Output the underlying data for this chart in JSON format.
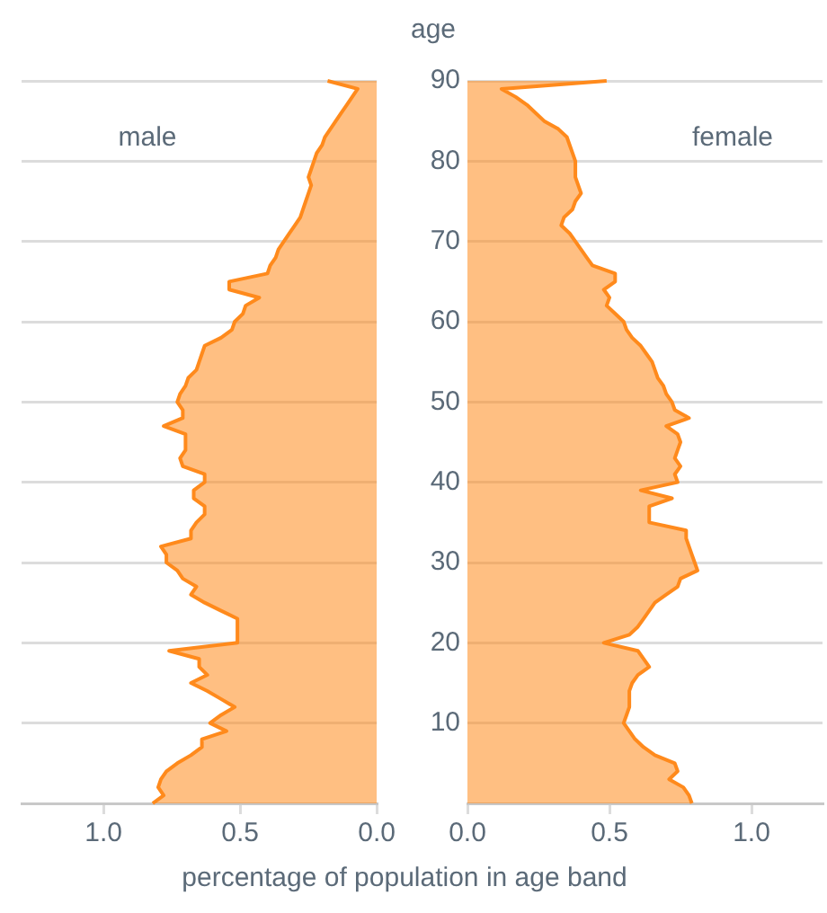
{
  "chart_data": [
    {
      "type": "area",
      "orientation": "horizontal",
      "xlabel": "percentage of population in age band",
      "x": [
        0,
        1,
        2,
        3,
        4,
        5,
        6,
        7,
        8,
        9,
        10,
        11,
        12,
        13,
        14,
        15,
        16,
        17,
        18,
        19,
        20,
        21,
        22,
        23,
        24,
        25,
        26,
        27,
        28,
        29,
        30,
        31,
        32,
        33,
        34,
        35,
        36,
        37,
        38,
        39,
        40,
        41,
        42,
        43,
        44,
        45,
        46,
        47,
        48,
        49,
        50,
        51,
        52,
        53,
        54,
        55,
        56,
        57,
        58,
        59,
        60,
        61,
        62,
        63,
        64,
        65,
        66,
        67,
        68,
        69,
        70,
        71,
        72,
        73,
        74,
        75,
        76,
        77,
        78,
        79,
        80,
        81,
        82,
        83,
        84,
        85,
        86,
        87,
        88,
        89,
        90
      ],
      "series": [
        {
          "name": "male",
          "color": "#ff8a1c",
          "values": [
            0.82,
            0.78,
            0.8,
            0.79,
            0.77,
            0.73,
            0.68,
            0.64,
            0.64,
            0.55,
            0.61,
            0.57,
            0.52,
            0.57,
            0.62,
            0.68,
            0.62,
            0.65,
            0.65,
            0.76,
            0.51,
            0.51,
            0.51,
            0.51,
            0.57,
            0.63,
            0.68,
            0.66,
            0.71,
            0.73,
            0.77,
            0.77,
            0.79,
            0.68,
            0.68,
            0.66,
            0.63,
            0.63,
            0.67,
            0.67,
            0.63,
            0.63,
            0.71,
            0.72,
            0.7,
            0.7,
            0.7,
            0.78,
            0.71,
            0.71,
            0.73,
            0.72,
            0.7,
            0.69,
            0.66,
            0.65,
            0.64,
            0.63,
            0.57,
            0.53,
            0.52,
            0.49,
            0.48,
            0.43,
            0.54,
            0.54,
            0.4,
            0.39,
            0.37,
            0.36,
            0.34,
            0.32,
            0.3,
            0.28,
            0.27,
            0.26,
            0.25,
            0.24,
            0.25,
            0.24,
            0.23,
            0.22,
            0.2,
            0.19,
            0.17,
            0.15,
            0.13,
            0.11,
            0.09,
            0.07,
            0.18
          ]
        }
      ],
      "xlim": [
        1.3,
        0
      ],
      "xticks": [
        {
          "value": 1,
          "label": "1.0"
        },
        {
          "value": 0.5,
          "label": "0.5"
        },
        {
          "value": 0,
          "label": "0.0"
        }
      ],
      "ylim": [
        0,
        90
      ],
      "yticks": [
        10,
        20,
        30,
        40,
        50,
        60,
        70,
        80,
        90
      ],
      "grid": "y",
      "tick_labels": "x"
    },
    {
      "type": "area",
      "orientation": "horizontal",
      "ylabel": "age",
      "x": [
        0,
        1,
        2,
        3,
        4,
        5,
        6,
        7,
        8,
        9,
        10,
        11,
        12,
        13,
        14,
        15,
        16,
        17,
        18,
        19,
        20,
        21,
        22,
        23,
        24,
        25,
        26,
        27,
        28,
        29,
        30,
        31,
        32,
        33,
        34,
        35,
        36,
        37,
        38,
        39,
        40,
        41,
        42,
        43,
        44,
        45,
        46,
        47,
        48,
        49,
        50,
        51,
        52,
        53,
        54,
        55,
        56,
        57,
        58,
        59,
        60,
        61,
        62,
        63,
        64,
        65,
        66,
        67,
        68,
        69,
        70,
        71,
        72,
        73,
        74,
        75,
        76,
        77,
        78,
        79,
        80,
        81,
        82,
        83,
        84,
        85,
        86,
        87,
        88,
        89,
        90
      ],
      "series": [
        {
          "name": "female",
          "color": "#ff8a1c",
          "values": [
            0.79,
            0.78,
            0.76,
            0.71,
            0.74,
            0.73,
            0.66,
            0.62,
            0.59,
            0.57,
            0.55,
            0.56,
            0.57,
            0.57,
            0.57,
            0.58,
            0.6,
            0.64,
            0.62,
            0.6,
            0.48,
            0.57,
            0.6,
            0.62,
            0.64,
            0.66,
            0.7,
            0.74,
            0.75,
            0.81,
            0.8,
            0.79,
            0.78,
            0.77,
            0.77,
            0.64,
            0.64,
            0.64,
            0.72,
            0.61,
            0.74,
            0.73,
            0.75,
            0.73,
            0.74,
            0.75,
            0.74,
            0.7,
            0.78,
            0.73,
            0.72,
            0.7,
            0.69,
            0.67,
            0.66,
            0.65,
            0.63,
            0.61,
            0.58,
            0.56,
            0.55,
            0.52,
            0.49,
            0.5,
            0.48,
            0.52,
            0.52,
            0.44,
            0.42,
            0.4,
            0.38,
            0.36,
            0.33,
            0.34,
            0.37,
            0.38,
            0.4,
            0.39,
            0.38,
            0.38,
            0.38,
            0.37,
            0.36,
            0.35,
            0.32,
            0.27,
            0.24,
            0.21,
            0.17,
            0.12,
            0.49
          ]
        }
      ],
      "xlim": [
        0,
        1.25
      ],
      "xticks": [
        {
          "value": 0,
          "label": "0.0"
        },
        {
          "value": 0.5,
          "label": "0.5"
        },
        {
          "value": 1,
          "label": "1.0"
        }
      ],
      "ylim": [
        0,
        90
      ],
      "yticks": [
        10,
        20,
        30,
        40,
        50,
        60,
        70,
        80,
        90
      ],
      "grid": "y"
    }
  ]
}
